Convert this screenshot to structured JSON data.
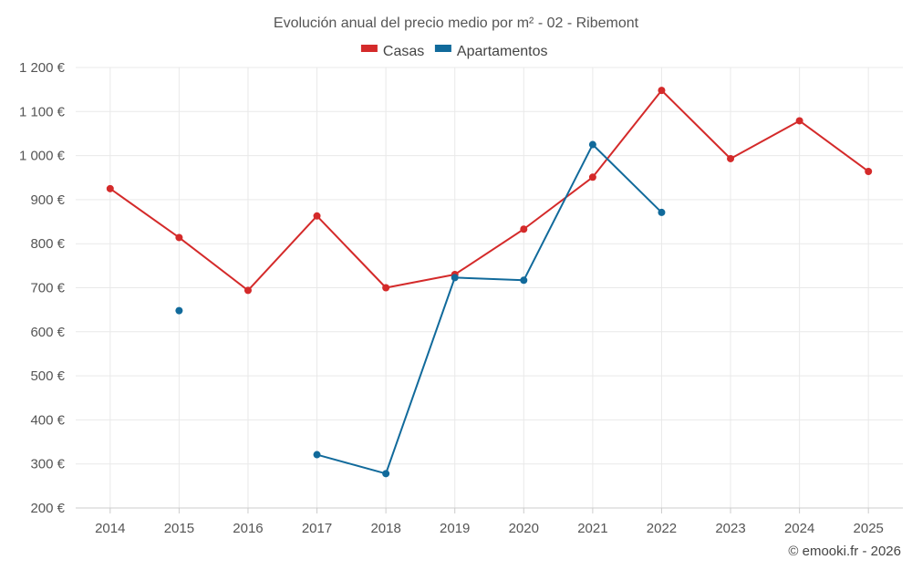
{
  "chart_data": {
    "type": "line",
    "title": "Evolución anual del precio medio por m² - 02 - Ribemont",
    "categories": [
      "2014",
      "2015",
      "2016",
      "2017",
      "2018",
      "2019",
      "2020",
      "2021",
      "2022",
      "2023",
      "2024",
      "2025"
    ],
    "ylim": [
      200,
      1200
    ],
    "yticks": [
      200,
      300,
      400,
      500,
      600,
      700,
      800,
      900,
      1000,
      1100,
      1200
    ],
    "ytick_labels": [
      "200 €",
      "300 €",
      "400 €",
      "500 €",
      "600 €",
      "700 €",
      "800 €",
      "900 €",
      "1 000 €",
      "1 100 €",
      "1 200 €"
    ],
    "legend_position": "top-center",
    "grid": true,
    "series": [
      {
        "name": "Casas",
        "color": "#d42a2a",
        "values": [
          925,
          814,
          694,
          863,
          700,
          730,
          833,
          951,
          1148,
          993,
          1079,
          964
        ]
      },
      {
        "name": "Apartamentos",
        "color": "#116a9b",
        "values": [
          null,
          648,
          null,
          321,
          278,
          723,
          717,
          1025,
          871,
          null,
          null,
          null
        ]
      }
    ]
  },
  "credit": "© emooki.fr - 2026"
}
